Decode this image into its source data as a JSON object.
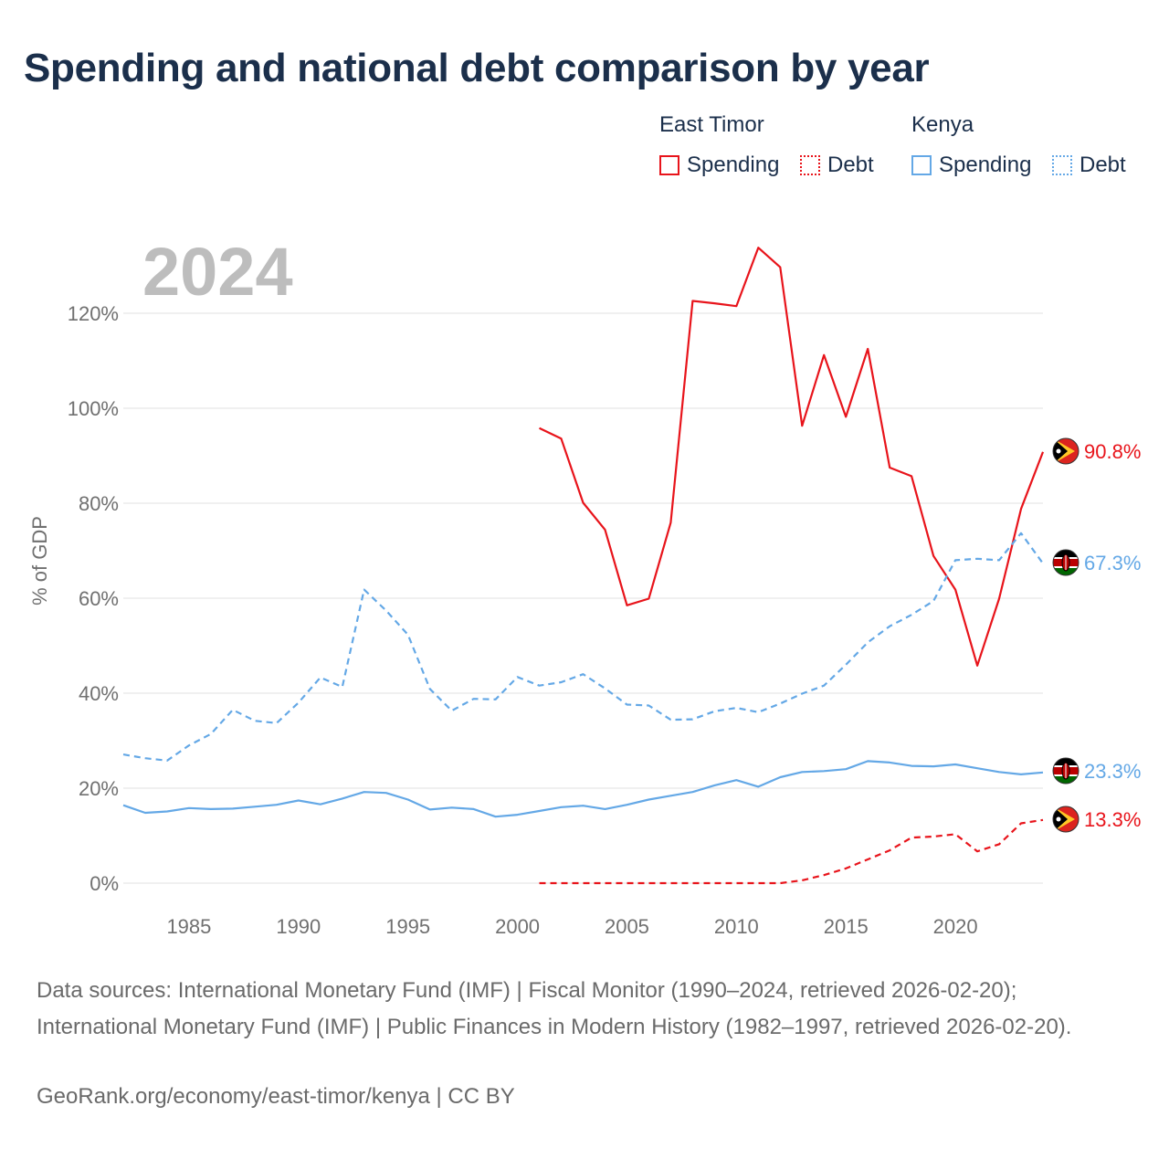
{
  "title": "Spending and national debt comparison by year",
  "colors": {
    "east_timor": "#e8141b",
    "kenya": "#64a8e6",
    "year_watermark": "#bdbdbd",
    "grid": "#e6e6e6"
  },
  "legend": {
    "groups": [
      {
        "country": "East Timor",
        "items": [
          {
            "label": "Spending",
            "style": "solid"
          },
          {
            "label": "Debt",
            "style": "dotted"
          }
        ]
      },
      {
        "country": "Kenya",
        "items": [
          {
            "label": "Spending",
            "style": "solid"
          },
          {
            "label": "Debt",
            "style": "dotted"
          }
        ]
      }
    ]
  },
  "chart_data": {
    "type": "line",
    "year_label": "2024",
    "ylabel": "% of GDP",
    "ylim": [
      0,
      130
    ],
    "xlim": [
      1982,
      2024
    ],
    "y_ticks": [
      0,
      20,
      40,
      60,
      80,
      100,
      120
    ],
    "y_tick_labels": [
      "0%",
      "20%",
      "40%",
      "60%",
      "80%",
      "100%",
      "120%"
    ],
    "x_ticks": [
      1985,
      1990,
      1995,
      2000,
      2005,
      2010,
      2015,
      2020
    ],
    "x_tick_labels": [
      "1985",
      "1990",
      "1995",
      "2000",
      "2005",
      "2010",
      "2015",
      "2020"
    ],
    "series": [
      {
        "name": "East Timor Spending",
        "country": "East Timor",
        "metric": "Spending",
        "style": "solid",
        "x": [
          2001,
          2002,
          2003,
          2004,
          2005,
          2006,
          2007,
          2008,
          2009,
          2010,
          2011,
          2012,
          2013,
          2014,
          2015,
          2016,
          2017,
          2018,
          2019,
          2020,
          2021,
          2022,
          2023,
          2024
        ],
        "values": [
          95.8,
          93.6,
          80.1,
          74.4,
          58.5,
          59.9,
          75.9,
          122.6,
          122.1,
          121.5,
          133.8,
          129.7,
          96.3,
          111.2,
          98.2,
          112.5,
          87.5,
          85.7,
          68.9,
          61.8,
          45.8,
          59.9,
          78.8,
          90.8
        ],
        "end_label": "90.8%"
      },
      {
        "name": "East Timor Debt",
        "country": "East Timor",
        "metric": "Debt",
        "style": "dashed",
        "x": [
          2001,
          2002,
          2003,
          2004,
          2005,
          2006,
          2007,
          2008,
          2009,
          2010,
          2011,
          2012,
          2013,
          2014,
          2015,
          2016,
          2017,
          2018,
          2019,
          2020,
          2021,
          2022,
          2023,
          2024
        ],
        "values": [
          0,
          0,
          0,
          0,
          0,
          0,
          0,
          0,
          0,
          0,
          0,
          0,
          0.6,
          1.7,
          3.1,
          5.0,
          6.9,
          9.6,
          9.8,
          10.3,
          6.7,
          8.2,
          12.6,
          13.3
        ],
        "end_label": "13.3%"
      },
      {
        "name": "Kenya Spending",
        "country": "Kenya",
        "metric": "Spending",
        "style": "solid",
        "x": [
          1982,
          1983,
          1984,
          1985,
          1986,
          1987,
          1988,
          1989,
          1990,
          1991,
          1992,
          1993,
          1994,
          1995,
          1996,
          1997,
          1998,
          1999,
          2000,
          2001,
          2002,
          2003,
          2004,
          2005,
          2006,
          2007,
          2008,
          2009,
          2010,
          2011,
          2012,
          2013,
          2014,
          2015,
          2016,
          2017,
          2018,
          2019,
          2020,
          2021,
          2022,
          2023,
          2024
        ],
        "values": [
          16.4,
          14.8,
          15.1,
          15.8,
          15.6,
          15.7,
          16.1,
          16.5,
          17.4,
          16.6,
          17.8,
          19.2,
          19.0,
          17.6,
          15.5,
          15.9,
          15.6,
          14.0,
          14.4,
          15.2,
          16.0,
          16.3,
          15.6,
          16.5,
          17.6,
          18.4,
          19.2,
          20.6,
          21.7,
          20.3,
          22.3,
          23.4,
          23.6,
          24.0,
          25.7,
          25.4,
          24.7,
          24.6,
          25.0,
          24.2,
          23.4,
          22.9,
          23.3
        ],
        "end_label": "23.3%"
      },
      {
        "name": "Kenya Debt",
        "country": "Kenya",
        "metric": "Debt",
        "style": "dashed",
        "x": [
          1982,
          1983,
          1984,
          1985,
          1986,
          1987,
          1988,
          1989,
          1990,
          1991,
          1992,
          1993,
          1994,
          1995,
          1996,
          1997,
          1998,
          1999,
          2000,
          2001,
          2002,
          2003,
          2004,
          2005,
          2006,
          2007,
          2008,
          2009,
          2010,
          2011,
          2012,
          2013,
          2014,
          2015,
          2016,
          2017,
          2018,
          2019,
          2020,
          2021,
          2022,
          2023,
          2024
        ],
        "values": [
          27.1,
          26.3,
          25.8,
          29.0,
          31.4,
          36.5,
          34.2,
          33.7,
          38.0,
          43.3,
          41.3,
          61.8,
          57.4,
          52.3,
          40.9,
          36.3,
          38.8,
          38.7,
          43.4,
          41.6,
          42.3,
          44.0,
          41.0,
          37.6,
          37.4,
          34.4,
          34.5,
          36.2,
          36.9,
          36.0,
          37.8,
          39.9,
          41.6,
          46.0,
          50.7,
          54.1,
          56.5,
          59.4,
          68.0,
          68.3,
          68.0,
          73.7,
          67.3
        ],
        "end_label": "67.3%"
      }
    ]
  },
  "footer": {
    "sources": "Data sources: International Monetary Fund (IMF) | Fiscal Monitor (1990–2024, retrieved 2026-02-20); International Monetary Fund (IMF) | Public Finances in Modern History (1982–1997, retrieved 2026-02-20).",
    "credit": "GeoRank.org/economy/east-timor/kenya | CC BY"
  }
}
